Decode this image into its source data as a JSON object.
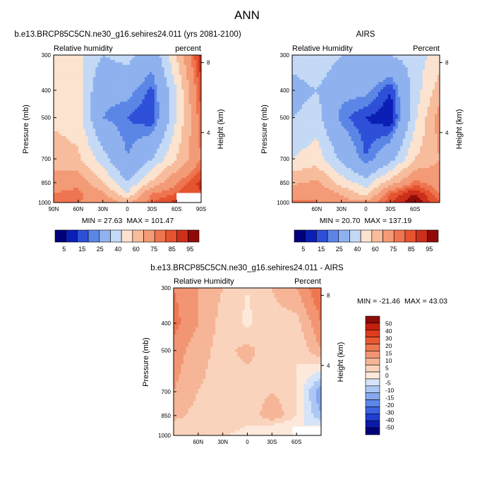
{
  "figure_title": "ANN",
  "colors": {
    "abs_scale": [
      "#00007a",
      "#0a1fb5",
      "#2e4fd8",
      "#5b86e6",
      "#8fb2ef",
      "#c4d9f5",
      "#fbe3cf",
      "#f7bc9c",
      "#f39a76",
      "#ef7450",
      "#e5532f",
      "#cc2f1a",
      "#8e0b0a"
    ],
    "diff_scale": [
      "#00007a",
      "#0b1aa8",
      "#1f3ed0",
      "#3b63e0",
      "#5d87ea",
      "#86a8ef",
      "#adc7f4",
      "#d5e4f8",
      "#fde9dc",
      "#fad3bc",
      "#f6b596",
      "#f29572",
      "#ee774f",
      "#e95a33",
      "#dd3d1d",
      "#c4200d",
      "#8e0b0a"
    ]
  },
  "chart_data": [
    {
      "type": "heatmap",
      "id": "model",
      "title": "b.e13.BRCP85C5CN.ne30_g16.sehires24.011 (yrs 2081-2100)",
      "left_label": "Relative humidity",
      "right_label": "percent",
      "xlabel": "",
      "ylabel": "Pressure (mb)",
      "y2label": "Height (km)",
      "xlim": [
        -90,
        90
      ],
      "ylim": [
        1000,
        300
      ],
      "x_ticks": [
        -90,
        -60,
        -30,
        0,
        30,
        60,
        90
      ],
      "x_tick_labels": [
        "90N",
        "60N",
        "30N",
        "0",
        "30S",
        "60S",
        "90S"
      ],
      "y_ticks": [
        300,
        400,
        500,
        700,
        850,
        1000
      ],
      "y_tick_labels": [
        "300",
        "400",
        "500",
        "700",
        "850",
        "1000"
      ],
      "y2_ticks": [
        8,
        4
      ],
      "y2_tick_labels": [
        "8",
        "4"
      ],
      "masked_region": {
        "lat_from": 60,
        "lat_to": 90,
        "p_from": 925,
        "p_to": 1000
      },
      "lat_rows": [
        -90,
        -60,
        -30,
        0,
        30,
        60,
        90
      ],
      "fields": {
        "1000": [
          85,
          80,
          78,
          68,
          85,
          92,
          88
        ],
        "925": [
          80,
          82,
          72,
          50,
          80,
          85,
          90
        ],
        "850": [
          75,
          78,
          60,
          40,
          62,
          80,
          92
        ],
        "700": [
          65,
          62,
          45,
          25,
          40,
          60,
          80
        ],
        "500": [
          58,
          55,
          25,
          20,
          15,
          50,
          85
        ],
        "400": [
          55,
          55,
          28,
          28,
          18,
          50,
          88
        ],
        "300": [
          60,
          52,
          40,
          45,
          30,
          60,
          95
        ]
      },
      "min_label": "MIN = ",
      "min_value": "27.63",
      "max_label": "MAX = ",
      "max_value": "101.47",
      "colorbar_labels": [
        "5",
        "15",
        "25",
        "40",
        "60",
        "75",
        "85",
        "95"
      ]
    },
    {
      "type": "heatmap",
      "id": "obs",
      "title": "AIRS",
      "left_label": "Relative Humidity",
      "right_label": "Percent",
      "xlabel": "",
      "ylabel": "Pressure (mb)",
      "y2label": "Height (km)",
      "xlim": [
        -90,
        90
      ],
      "ylim": [
        1000,
        300
      ],
      "x_ticks": [
        -60,
        -30,
        0,
        30,
        60
      ],
      "x_tick_labels": [
        "60N",
        "30N",
        "0",
        "30S",
        "60S"
      ],
      "y_ticks": [
        300,
        400,
        500,
        700,
        850,
        1000
      ],
      "y_tick_labels": [
        "300",
        "400",
        "500",
        "700",
        "850",
        "1000"
      ],
      "y2_ticks": [
        8,
        4
      ],
      "y2_tick_labels": [
        "8",
        "4"
      ],
      "lat_rows": [
        -90,
        -60,
        -30,
        0,
        30,
        60,
        90
      ],
      "fields": {
        "1000": [
          82,
          80,
          75,
          72,
          90,
          100,
          85
        ],
        "925": [
          75,
          80,
          68,
          55,
          85,
          95,
          80
        ],
        "850": [
          68,
          72,
          55,
          45,
          65,
          82,
          75
        ],
        "700": [
          50,
          55,
          38,
          20,
          35,
          60,
          70
        ],
        "500": [
          40,
          45,
          22,
          15,
          10,
          48,
          75
        ],
        "400": [
          35,
          40,
          28,
          28,
          15,
          45,
          65
        ],
        "300": [
          45,
          50,
          40,
          40,
          40,
          45,
          55
        ]
      },
      "min_label": "MIN = ",
      "min_value": "20.70",
      "max_label": "MAX = ",
      "max_value": "137.19",
      "colorbar_labels": [
        "5",
        "15",
        "25",
        "40",
        "60",
        "75",
        "85",
        "95"
      ]
    },
    {
      "type": "heatmap",
      "id": "diff",
      "title": "b.e13.BRCP85C5CN.ne30_g16.sehires24.011 - AIRS",
      "left_label": "Relative Humidity",
      "right_label": "Percent",
      "xlabel": "",
      "ylabel": "Pressure (mb)",
      "y2label": "Height (km)",
      "xlim": [
        -90,
        90
      ],
      "ylim": [
        1000,
        300
      ],
      "x_ticks": [
        -60,
        -30,
        0,
        30,
        60
      ],
      "x_tick_labels": [
        "60N",
        "30N",
        "0",
        "30S",
        "60S"
      ],
      "y_ticks": [
        300,
        400,
        500,
        700,
        850,
        1000
      ],
      "y_tick_labels": [
        "300",
        "400",
        "500",
        "700",
        "850",
        "1000"
      ],
      "y2_ticks": [
        8,
        4
      ],
      "y2_tick_labels": [
        "8",
        "4"
      ],
      "masked_region": {
        "lat_from": 55,
        "lat_to": 90,
        "p_from": 930,
        "p_to": 1000
      },
      "lat_rows": [
        -90,
        -60,
        -30,
        0,
        30,
        60,
        90
      ],
      "fields": {
        "1000": [
          10,
          5,
          6,
          2,
          2,
          5,
          8
        ],
        "925": [
          8,
          5,
          8,
          5,
          4,
          0,
          0
        ],
        "850": [
          12,
          8,
          10,
          5,
          15,
          5,
          -10
        ],
        "700": [
          15,
          10,
          8,
          6,
          10,
          5,
          -15
        ],
        "500": [
          18,
          12,
          8,
          12,
          6,
          5,
          15
        ],
        "400": [
          22,
          15,
          8,
          4,
          8,
          8,
          20
        ],
        "300": [
          20,
          15,
          10,
          5,
          10,
          15,
          25
        ]
      },
      "min_label": "MIN = ",
      "min_value": "-21.46",
      "max_label": "MAX = ",
      "max_value": "43.03",
      "colorbar_labels": [
        "50",
        "40",
        "30",
        "20",
        "15",
        "10",
        "5",
        "0",
        "-5",
        "-10",
        "-15",
        "-20",
        "-30",
        "-40",
        "-50"
      ]
    }
  ]
}
